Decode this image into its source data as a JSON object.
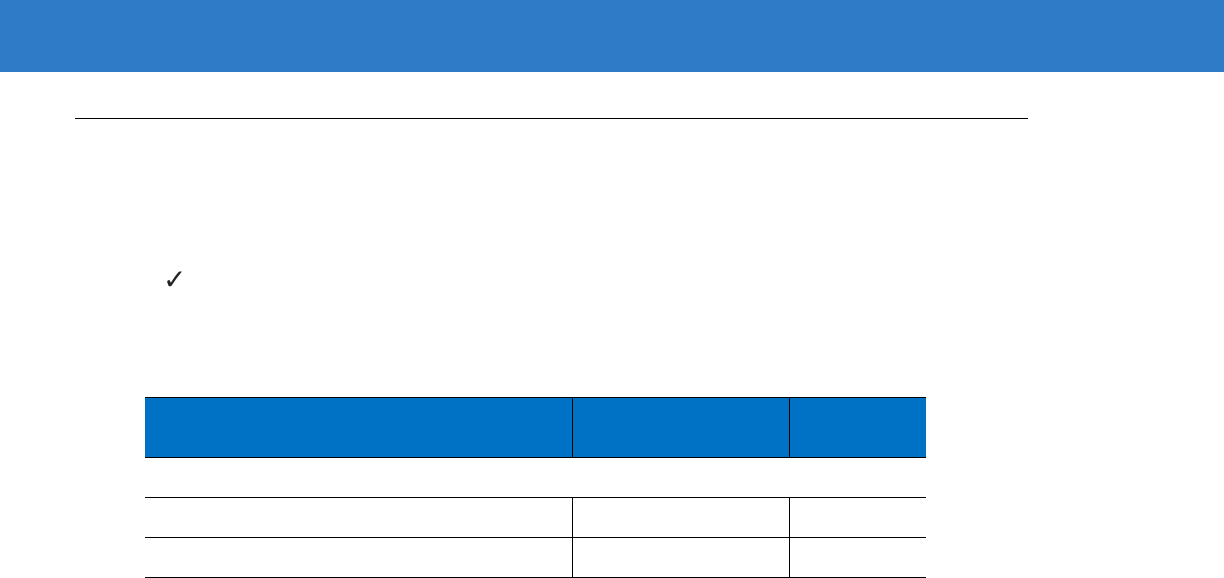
{
  "colors": {
    "banner": "#2F7BC8",
    "table_header": "#0072C6"
  },
  "note": {
    "icon": "checkmark-icon"
  },
  "table": {
    "headers": [
      "",
      "",
      ""
    ],
    "section": "",
    "rows": [
      [
        "",
        "",
        ""
      ],
      [
        "",
        "",
        ""
      ]
    ]
  }
}
